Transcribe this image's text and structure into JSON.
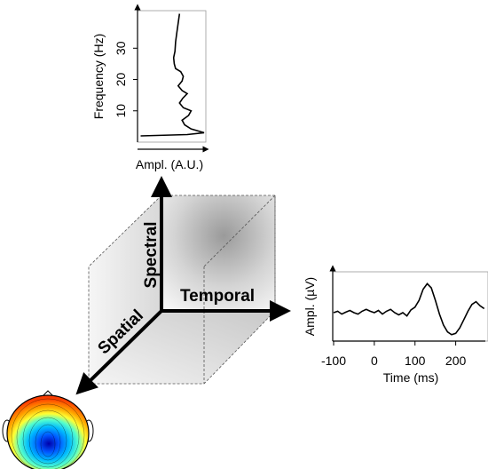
{
  "dimensions": {
    "spectral": "Spectral",
    "temporal": "Temporal",
    "spatial": "Spatial"
  },
  "spectrum_plot": {
    "ylabel": "Frequency (Hz)",
    "xlabel": "Ampl. (A.U.)",
    "yticks": [
      "10",
      "20",
      "30"
    ],
    "curve": [
      [
        0.62,
        41
      ],
      [
        0.6,
        38
      ],
      [
        0.58,
        35
      ],
      [
        0.56,
        32
      ],
      [
        0.55,
        29
      ],
      [
        0.53,
        27
      ],
      [
        0.54,
        25
      ],
      [
        0.56,
        23.5
      ],
      [
        0.64,
        22.5
      ],
      [
        0.68,
        21
      ],
      [
        0.66,
        19.5
      ],
      [
        0.6,
        18
      ],
      [
        0.66,
        16.5
      ],
      [
        0.74,
        15.5
      ],
      [
        0.67,
        14
      ],
      [
        0.62,
        12.5
      ],
      [
        0.68,
        11
      ],
      [
        0.8,
        10
      ],
      [
        0.76,
        8.5
      ],
      [
        0.66,
        7
      ],
      [
        0.7,
        5.5
      ],
      [
        0.8,
        4.2
      ],
      [
        1.0,
        3.0
      ],
      [
        0.74,
        2.4
      ],
      [
        0.02,
        2.0
      ]
    ]
  },
  "erp_plot": {
    "ylabel": "Ampl. (µV)",
    "xlabel": "Time (ms)",
    "xticks": [
      "-100",
      "0",
      "100",
      "200"
    ],
    "curve": [
      [
        -100,
        0.0
      ],
      [
        -90,
        0.05
      ],
      [
        -80,
        -0.05
      ],
      [
        -70,
        0.02
      ],
      [
        -60,
        0.08
      ],
      [
        -50,
        0.0
      ],
      [
        -40,
        -0.05
      ],
      [
        -30,
        0.05
      ],
      [
        -20,
        0.12
      ],
      [
        -10,
        0.05
      ],
      [
        0,
        0.0
      ],
      [
        10,
        0.08
      ],
      [
        20,
        -0.05
      ],
      [
        30,
        0.05
      ],
      [
        40,
        0.12
      ],
      [
        50,
        0.0
      ],
      [
        60,
        -0.08
      ],
      [
        70,
        0.0
      ],
      [
        80,
        -0.12
      ],
      [
        90,
        0.1
      ],
      [
        100,
        0.2
      ],
      [
        110,
        0.45
      ],
      [
        120,
        0.85
      ],
      [
        130,
        1.05
      ],
      [
        140,
        0.9
      ],
      [
        150,
        0.45
      ],
      [
        160,
        -0.05
      ],
      [
        170,
        -0.45
      ],
      [
        180,
        -0.7
      ],
      [
        190,
        -0.8
      ],
      [
        200,
        -0.75
      ],
      [
        210,
        -0.55
      ],
      [
        220,
        -0.25
      ],
      [
        230,
        0.05
      ],
      [
        240,
        0.3
      ],
      [
        250,
        0.4
      ],
      [
        260,
        0.25
      ],
      [
        270,
        0.15
      ]
    ]
  },
  "topomap": {
    "colormap": [
      "#b30000",
      "#ff3300",
      "#ff9900",
      "#ffee00",
      "#66ffaa",
      "#00ccff",
      "#0066ff",
      "#0000aa"
    ]
  }
}
